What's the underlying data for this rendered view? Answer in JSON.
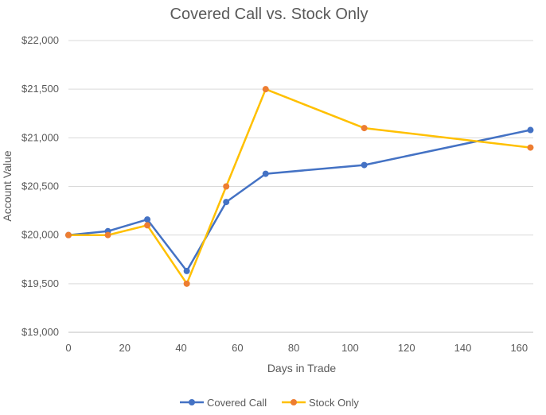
{
  "chart_data": {
    "type": "line",
    "title": "Covered Call vs. Stock Only",
    "xlabel": "Days in Trade",
    "ylabel": "Account Value",
    "xlim": [
      0,
      165
    ],
    "ylim": [
      19000,
      22000
    ],
    "x_ticks": [
      0,
      20,
      40,
      60,
      80,
      100,
      120,
      140,
      160
    ],
    "y_ticks": [
      19000,
      19500,
      20000,
      20500,
      21000,
      21500,
      22000
    ],
    "y_tick_labels": [
      "$19,000",
      "$19,500",
      "$20,000",
      "$20,500",
      "$21,000",
      "$21,500",
      "$22,000"
    ],
    "grid": "horizontal",
    "legend_position": "bottom",
    "series": [
      {
        "name": "Covered Call",
        "line_color": "#4472C4",
        "marker_color": "#4472C4",
        "x": [
          0,
          14,
          28,
          42,
          56,
          70,
          105,
          164
        ],
        "values": [
          20000,
          20040,
          20160,
          19630,
          20340,
          20630,
          20720,
          21080
        ]
      },
      {
        "name": "Stock Only",
        "line_color": "#FFC000",
        "marker_color": "#ED7D31",
        "x": [
          0,
          14,
          28,
          42,
          56,
          70,
          105,
          164
        ],
        "values": [
          20000,
          20000,
          20100,
          19500,
          20500,
          21500,
          21100,
          20900
        ]
      }
    ]
  }
}
